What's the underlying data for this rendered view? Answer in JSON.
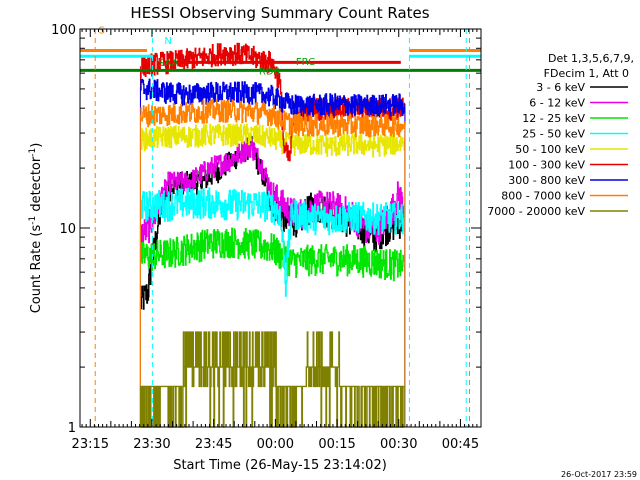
{
  "chart_data": {
    "type": "line",
    "title": "HESSI Observing Summary Count Rates",
    "xlabel": "Start Time (26-May-15 23:14:02)",
    "ylabel_main": "Count Rate (s",
    "ylabel_sup1": "-1",
    "ylabel_mid": " detector",
    "ylabel_sup2": "-1",
    "ylabel_end": ")",
    "y_scale": "log",
    "ylim": [
      1,
      100
    ],
    "xlim_min": [
      -1.5,
      96
    ],
    "x_ticks": [
      {
        "t": 1,
        "label": "23:15"
      },
      {
        "t": 16,
        "label": "23:30"
      },
      {
        "t": 31,
        "label": "23:45"
      },
      {
        "t": 46,
        "label": "00:00"
      },
      {
        "t": 61,
        "label": "00:15"
      },
      {
        "t": 76,
        "label": "00:30"
      },
      {
        "t": 91,
        "label": "00:45"
      }
    ],
    "y_ticks": [
      {
        "v": 1,
        "label": "1"
      },
      {
        "v": 10,
        "label": "10"
      },
      {
        "v": 100,
        "label": "100"
      }
    ],
    "legend": {
      "placement": "right",
      "header": [
        "Det 1,3,5,6,7,9,",
        "FDecim 1, Att 0"
      ],
      "entries": [
        {
          "label": "3 - 6 keV",
          "color": "#000000"
        },
        {
          "label": "6 - 12 keV",
          "color": "#e600e6"
        },
        {
          "label": "12 - 25 keV",
          "color": "#00e600"
        },
        {
          "label": "25 - 50 keV",
          "color": "#00ffff"
        },
        {
          "label": "50 - 100 keV",
          "color": "#e6e600"
        },
        {
          "label": "100 - 300 keV",
          "color": "#e60000"
        },
        {
          "label": "300 - 800 keV",
          "color": "#0000e6"
        },
        {
          "label": "800 - 7000 keV",
          "color": "#ff8000"
        },
        {
          "label": "7000 - 20000 keV",
          "color": "#808000"
        }
      ]
    },
    "annotations": [
      {
        "text": "S",
        "t": 3,
        "v": 95,
        "color": "#ff8000"
      },
      {
        "text": "N",
        "t": 19,
        "v": 84,
        "color": "#00ffff"
      },
      {
        "text": "SAA",
        "t": 17.5,
        "v": 65,
        "color": "#00a000"
      },
      {
        "text": "RD6",
        "t": 42,
        "v": 59,
        "color": "#00a000"
      },
      {
        "text": "FRC",
        "t": 51,
        "v": 66,
        "color": "#00a000"
      }
    ],
    "flags": [
      {
        "name": "saa-flag",
        "color": "#ff8000",
        "segments": [
          [
            -1.5,
            14.8
          ],
          [
            78.5,
            96
          ]
        ],
        "v": 78
      },
      {
        "name": "night-flag",
        "color": "#00ffff",
        "segments": [
          [
            -1.5,
            16.0
          ],
          [
            78.5,
            96
          ]
        ],
        "v": 73
      },
      {
        "name": "decimation-flag",
        "color": "#008000",
        "segments": [
          [
            -1.5,
            96
          ]
        ],
        "v": 62
      },
      {
        "name": "frc-flag",
        "color": "#e60000",
        "segments": [
          [
            19.5,
            76.5
          ]
        ],
        "v": 68
      }
    ],
    "vlines": [
      {
        "t": 2.2,
        "color": "#ff8000"
      },
      {
        "t": 16.1,
        "color": "#00ffff"
      },
      {
        "t": 78.6,
        "color": "#00ffff"
      },
      {
        "t": 92.4,
        "color": "#00ffff"
      },
      {
        "t": 93.2,
        "color": "#ff8000"
      }
    ],
    "data_window": [
      13.2,
      77.5
    ],
    "series": [
      {
        "name": "3 - 6 keV",
        "color": "#000000",
        "knots": [
          [
            13.2,
            4.2
          ],
          [
            15,
            4.8
          ],
          [
            17,
            9
          ],
          [
            19,
            15
          ],
          [
            23,
            17
          ],
          [
            28,
            17
          ],
          [
            33,
            20
          ],
          [
            38,
            24
          ],
          [
            40,
            26
          ],
          [
            43,
            18
          ],
          [
            45,
            14
          ],
          [
            47,
            12
          ],
          [
            49,
            11
          ],
          [
            52,
            11
          ],
          [
            55,
            13
          ],
          [
            60,
            12
          ],
          [
            63,
            11
          ],
          [
            67,
            10
          ],
          [
            70,
            9
          ],
          [
            73,
            10
          ],
          [
            77.5,
            11
          ]
        ]
      },
      {
        "name": "6 - 12 keV",
        "color": "#e600e6",
        "knots": [
          [
            13.2,
            9.2
          ],
          [
            15,
            10
          ],
          [
            17,
            12
          ],
          [
            20,
            17
          ],
          [
            25,
            17
          ],
          [
            30,
            20
          ],
          [
            35,
            22
          ],
          [
            40,
            26
          ],
          [
            43,
            20
          ],
          [
            45,
            15
          ],
          [
            48,
            13
          ],
          [
            50,
            12
          ],
          [
            53,
            12
          ],
          [
            56,
            13
          ],
          [
            60,
            13
          ],
          [
            64,
            12
          ],
          [
            68,
            10
          ],
          [
            71,
            10
          ],
          [
            74,
            12
          ],
          [
            76,
            15
          ],
          [
            77.5,
            12
          ]
        ]
      },
      {
        "name": "12 - 25 keV",
        "color": "#00e600",
        "knots": [
          [
            13.2,
            7.2
          ],
          [
            20,
            7.5
          ],
          [
            25,
            8
          ],
          [
            30,
            8.5
          ],
          [
            35,
            8.6
          ],
          [
            40,
            8.4
          ],
          [
            45,
            8
          ],
          [
            48,
            7.2
          ],
          [
            50,
            6.8
          ],
          [
            55,
            7
          ],
          [
            60,
            7
          ],
          [
            65,
            7
          ],
          [
            70,
            6.8
          ],
          [
            77.5,
            6.5
          ]
        ]
      },
      {
        "name": "25 - 50 keV",
        "color": "#00ffff",
        "knots": [
          [
            13.2,
            13
          ],
          [
            20,
            13.2
          ],
          [
            25,
            13.5
          ],
          [
            30,
            13.5
          ],
          [
            35,
            13.3
          ],
          [
            40,
            13.3
          ],
          [
            45,
            13
          ],
          [
            47,
            12
          ],
          [
            48.5,
            5.2
          ],
          [
            50,
            12
          ],
          [
            55,
            11.3
          ],
          [
            60,
            11.2
          ],
          [
            65,
            11.5
          ],
          [
            70,
            11.3
          ],
          [
            77.5,
            11.4
          ]
        ]
      },
      {
        "name": "50 - 100 keV",
        "color": "#e6e600",
        "knots": [
          [
            13.2,
            28
          ],
          [
            20,
            29
          ],
          [
            25,
            29
          ],
          [
            30,
            29.5
          ],
          [
            35,
            29.5
          ],
          [
            40,
            29.5
          ],
          [
            45,
            28.5
          ],
          [
            48,
            27
          ],
          [
            50,
            26.5
          ],
          [
            55,
            26.5
          ],
          [
            60,
            26
          ],
          [
            65,
            26.5
          ],
          [
            70,
            26
          ],
          [
            77.5,
            27
          ]
        ]
      },
      {
        "name": "100 - 300 keV",
        "color": "#e60000",
        "knots": [
          [
            13.2,
            65
          ],
          [
            18,
            68
          ],
          [
            22,
            69
          ],
          [
            28,
            72
          ],
          [
            33,
            76
          ],
          [
            38,
            75
          ],
          [
            42,
            71
          ],
          [
            45,
            68
          ],
          [
            47,
            55
          ],
          [
            48,
            25
          ],
          [
            49.5,
            22
          ],
          [
            50.5,
            38
          ],
          [
            55,
            40
          ],
          [
            60,
            40
          ],
          [
            65,
            40
          ],
          [
            70,
            40
          ],
          [
            77.5,
            40
          ]
        ]
      },
      {
        "name": "300 - 800 keV",
        "color": "#0000e6",
        "knots": [
          [
            13.2,
            51
          ],
          [
            20,
            48
          ],
          [
            25,
            47
          ],
          [
            30,
            48
          ],
          [
            35,
            48
          ],
          [
            40,
            48
          ],
          [
            45,
            46
          ],
          [
            48,
            43
          ],
          [
            50,
            41.5
          ],
          [
            55,
            41.5
          ],
          [
            60,
            42
          ],
          [
            65,
            41.5
          ],
          [
            70,
            41.5
          ],
          [
            77.5,
            42
          ]
        ]
      },
      {
        "name": "800 - 7000 keV",
        "color": "#ff8000",
        "knots": [
          [
            13.2,
            37
          ],
          [
            20,
            37.5
          ],
          [
            25,
            38
          ],
          [
            30,
            39
          ],
          [
            35,
            39
          ],
          [
            40,
            38.5
          ],
          [
            45,
            37.5
          ],
          [
            48,
            34.5
          ],
          [
            50,
            33.5
          ],
          [
            55,
            33
          ],
          [
            60,
            33
          ],
          [
            65,
            33
          ],
          [
            70,
            33
          ],
          [
            77.5,
            33
          ]
        ]
      },
      {
        "name": "7000 - 20000 keV",
        "color": "#808000",
        "knots": [
          [
            13.2,
            1.6
          ],
          [
            16,
            1.6
          ],
          [
            20,
            1.6
          ],
          [
            22,
            1.6
          ],
          [
            26,
            2.6
          ],
          [
            30,
            2.6
          ],
          [
            35,
            2.5
          ],
          [
            40,
            2.5
          ],
          [
            45,
            2.3
          ],
          [
            48,
            1.6
          ],
          [
            52,
            1.6
          ],
          [
            55,
            2.4
          ],
          [
            58,
            2.4
          ],
          [
            60,
            2.4
          ],
          [
            63,
            1.6
          ],
          [
            70,
            1.6
          ],
          [
            77.5,
            1.6
          ]
        ]
      }
    ]
  },
  "footer": {
    "date_stamp": "26-Oct-2017 23:59"
  }
}
